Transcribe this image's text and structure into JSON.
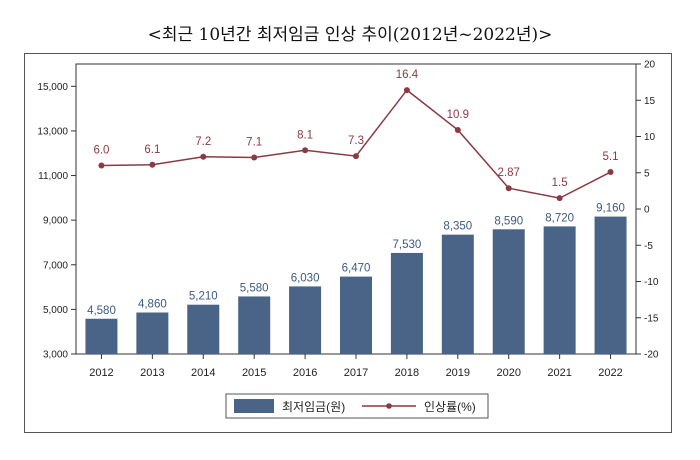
{
  "title": "<최근 10년간 최저임금 인상 추이(2012년~2022년)>",
  "chart_data": {
    "type": "bar",
    "categories": [
      "2012",
      "2013",
      "2014",
      "2015",
      "2016",
      "2017",
      "2018",
      "2019",
      "2020",
      "2021",
      "2022"
    ],
    "series": [
      {
        "name": "최저임금(원)",
        "type": "bar",
        "axis": "left",
        "values": [
          4580,
          4860,
          5210,
          5580,
          6030,
          6470,
          7530,
          8350,
          8590,
          8720,
          9160
        ],
        "labels": [
          "4,580",
          "4,860",
          "5,210",
          "5,580",
          "6,030",
          "6,470",
          "7,530",
          "8,350",
          "8,590",
          "8,720",
          "9,160"
        ],
        "color": "#4a6488"
      },
      {
        "name": "인상률(%)",
        "type": "line",
        "axis": "right",
        "values": [
          6.0,
          6.1,
          7.2,
          7.1,
          8.1,
          7.3,
          16.4,
          10.9,
          2.87,
          1.5,
          5.1
        ],
        "labels": [
          "6.0",
          "6.1",
          "7.2",
          "7.1",
          "8.1",
          "7.3",
          "16.4",
          "10.9",
          "2.87",
          "1.5",
          "5.1"
        ],
        "color": "#8b3a44"
      }
    ],
    "y_left": {
      "range": [
        3000,
        16000
      ],
      "ticks": [
        3000,
        5000,
        7000,
        9000,
        11000,
        13000,
        15000
      ],
      "tick_labels": [
        "3,000",
        "5,000",
        "7,000",
        "9,000",
        "11,000",
        "13,000",
        "15,000"
      ]
    },
    "y_right": {
      "range": [
        -20,
        20
      ],
      "ticks": [
        -20,
        -15,
        -10,
        -5,
        0,
        5,
        10,
        15,
        20
      ],
      "tick_labels": [
        "-20",
        "-15",
        "-10",
        "-5",
        "0",
        "5",
        "10",
        "15",
        "20"
      ]
    },
    "grid": false,
    "legend_position": "bottom"
  }
}
